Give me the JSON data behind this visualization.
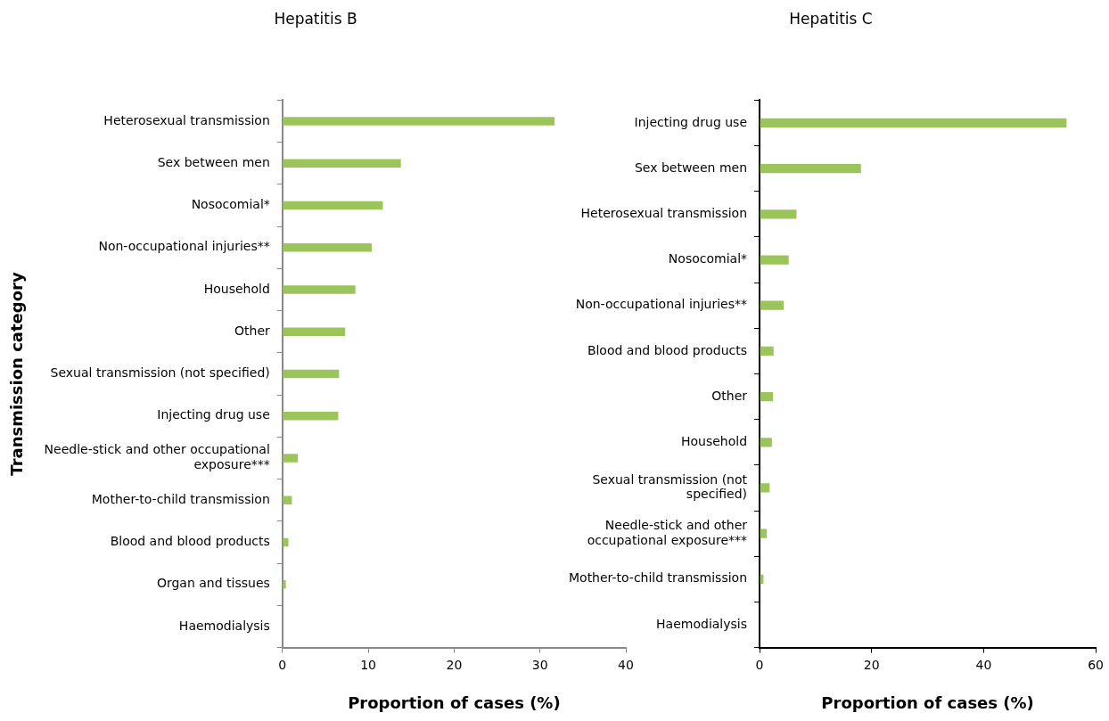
{
  "chart_data": [
    {
      "type": "bar",
      "orientation": "horizontal",
      "title": "Hepatitis B",
      "xlabel": "Proportion of cases (%)",
      "ylabel": "Transmission category",
      "categories": [
        "Heterosexual transmission",
        "Sex between men",
        "Nosocomial*",
        "Non-occupational injuries**",
        "Household",
        "Other",
        "Sexual transmission (not specified)",
        "Injecting drug use",
        "Needle-stick and other occupational exposure***",
        "Mother-to-child transmission",
        "Blood and blood products",
        "Organ and tissues",
        "Haemodialysis"
      ],
      "values": [
        31.7,
        13.8,
        11.7,
        10.4,
        8.5,
        7.3,
        6.6,
        6.5,
        1.8,
        1.1,
        0.7,
        0.4,
        0
      ],
      "color": "#9bc55a",
      "xlim": [
        0,
        40
      ],
      "xticks": [
        0,
        10,
        20,
        30,
        40
      ],
      "grid": false,
      "legend": false
    },
    {
      "type": "bar",
      "orientation": "horizontal",
      "title": "Hepatitis C",
      "xlabel": "Proportion of cases (%)",
      "categories": [
        "Injecting drug use",
        "Sex between men",
        "Heterosexual transmission",
        "Nosocomial*",
        "Non-occupational injuries**",
        "Blood and blood products",
        "Other",
        "Household",
        "Sexual transmission (not specified)",
        "Needle-stick and other occupational exposure***",
        "Mother-to-child transmission",
        "Haemodialysis"
      ],
      "values": [
        54.8,
        18.1,
        6.6,
        5.2,
        4.3,
        2.5,
        2.4,
        2.2,
        1.8,
        1.3,
        0.7,
        0
      ],
      "color": "#9bc55a",
      "xlim": [
        0,
        60
      ],
      "xticks": [
        0,
        20,
        40,
        60
      ],
      "grid": false,
      "legend": false
    }
  ]
}
